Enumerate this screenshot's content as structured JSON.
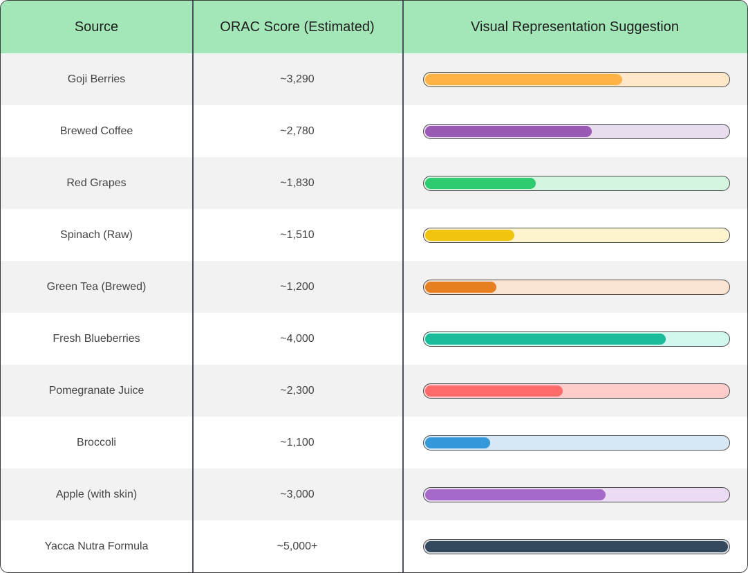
{
  "table": {
    "headers": [
      "Source",
      "ORAC Score (Estimated)",
      "Visual Representation Suggestion"
    ],
    "rows": [
      {
        "source": "Goji Berries",
        "score": "~3,290",
        "fill_fraction": 0.65,
        "bar_color": "#ffb347",
        "track_color": "#ffe8c9"
      },
      {
        "source": "Brewed Coffee",
        "score": "~2,780",
        "fill_fraction": 0.55,
        "bar_color": "#9b59b6",
        "track_color": "#e8dcef"
      },
      {
        "source": "Red Grapes",
        "score": "~1,830",
        "fill_fraction": 0.365,
        "bar_color": "#2ecc71",
        "track_color": "#d3f5e0"
      },
      {
        "source": "Spinach (Raw)",
        "score": "~1,510",
        "fill_fraction": 0.295,
        "bar_color": "#f1c40f",
        "track_color": "#fdf3cf"
      },
      {
        "source": "Green Tea (Brewed)",
        "score": "~1,200",
        "fill_fraction": 0.235,
        "bar_color": "#e67e22",
        "track_color": "#fae3d0"
      },
      {
        "source": "Fresh Blueberries",
        "score": "~4,000",
        "fill_fraction": 0.795,
        "bar_color": "#1abc9c",
        "track_color": "#d1f7ef"
      },
      {
        "source": "Pomegranate Juice",
        "score": "~2,300",
        "fill_fraction": 0.455,
        "bar_color": "#ff6b6b",
        "track_color": "#ffcccc"
      },
      {
        "source": "Broccoli",
        "score": "~1,100",
        "fill_fraction": 0.215,
        "bar_color": "#3498db",
        "track_color": "#d6e8f6"
      },
      {
        "source": "Apple (with skin)",
        "score": "~3,000",
        "fill_fraction": 0.595,
        "bar_color": "#a569c9",
        "track_color": "#ecdcf3"
      },
      {
        "source": "Yacca Nutra Formula",
        "score": "~5,000+",
        "fill_fraction": 1.0,
        "bar_color": "#34495e",
        "track_color": "#d5dbe0"
      }
    ]
  }
}
